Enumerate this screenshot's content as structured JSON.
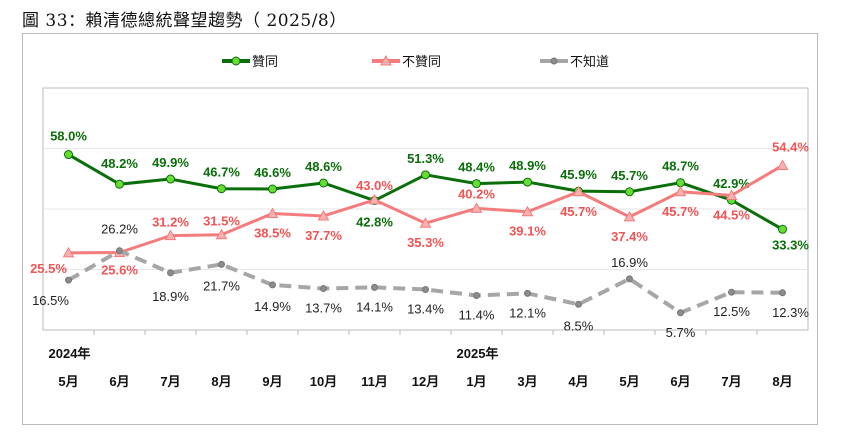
{
  "title": "圖 33：賴清德總統聲望趨勢（ 2025/8）",
  "chart_data": {
    "type": "line",
    "categories": [
      "5月",
      "6月",
      "7月",
      "8月",
      "9月",
      "10月",
      "11月",
      "12月",
      "1月",
      "3月",
      "4月",
      "5月",
      "6月",
      "7月",
      "8月"
    ],
    "year_labels": [
      {
        "index": 0,
        "label": "2024年"
      },
      {
        "index": 8,
        "label": "2025年"
      }
    ],
    "ylim": [
      0,
      80
    ],
    "grid": true,
    "legend": "top",
    "series": [
      {
        "name": "贊同",
        "color": "#0a6e0a",
        "marker": "circle",
        "marker_color": "#66dd33",
        "dashed": false,
        "label_color": "#0a6e0a",
        "values": [
          58.0,
          48.2,
          49.9,
          46.7,
          46.6,
          48.6,
          42.8,
          51.3,
          48.4,
          48.9,
          45.9,
          45.7,
          48.7,
          42.9,
          33.3
        ],
        "labels": [
          "58.0%",
          "48.2%",
          "49.9%",
          "46.7%",
          "46.6%",
          "48.6%",
          "42.8%",
          "51.3%",
          "48.4%",
          "48.9%",
          "45.9%",
          "45.7%",
          "48.7%",
          "42.9%",
          "33.3%"
        ]
      },
      {
        "name": "不贊同",
        "color": "#f47c7c",
        "marker": "triangle",
        "marker_color": "#f9b0b0",
        "dashed": false,
        "label_color": "#f25454",
        "values": [
          25.5,
          25.6,
          31.2,
          31.5,
          38.5,
          37.7,
          43.0,
          35.3,
          40.2,
          39.1,
          45.7,
          37.4,
          45.7,
          44.5,
          54.4
        ],
        "labels": [
          "25.5%",
          "25.6%",
          "31.2%",
          "31.5%",
          "38.5%",
          "37.7%",
          "43.0%",
          "35.3%",
          "40.2%",
          "39.1%",
          "45.7%",
          "37.4%",
          "45.7%",
          "44.5%",
          "54.4%"
        ]
      },
      {
        "name": "不知道",
        "color": "#a6a6a6",
        "marker": "circle",
        "marker_color": "#8c8c8c",
        "dashed": true,
        "label_color": "#222",
        "values": [
          16.5,
          26.2,
          18.9,
          21.7,
          14.9,
          13.7,
          14.1,
          13.4,
          11.4,
          12.1,
          8.5,
          16.9,
          5.7,
          12.5,
          12.3
        ],
        "labels": [
          "16.5%",
          "26.2%",
          "18.9%",
          "21.7%",
          "14.9%",
          "13.7%",
          "14.1%",
          "13.4%",
          "11.4%",
          "12.1%",
          "8.5%",
          "16.9%",
          "5.7%",
          "12.5%",
          "12.3%"
        ]
      }
    ]
  }
}
